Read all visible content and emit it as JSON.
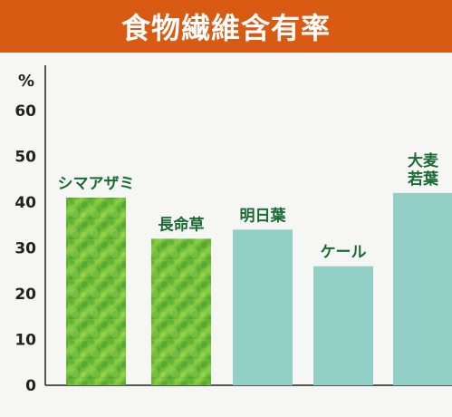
{
  "chart_data": {
    "type": "bar",
    "title": "食物繊維含有率",
    "ylabel": "%",
    "xlabel": "",
    "ylim": [
      0,
      60
    ],
    "yticks": [
      0,
      10,
      20,
      30,
      40,
      50,
      60
    ],
    "categories": [
      "シマアザミ",
      "長命草",
      "明日葉",
      "ケール",
      "大麦若葉"
    ],
    "label_lines": [
      [
        "シマアザミ"
      ],
      [
        "長命草"
      ],
      [
        "明日葉"
      ],
      [
        "ケール"
      ],
      [
        "大麦",
        "若葉"
      ]
    ],
    "values": [
      41,
      32,
      34,
      26,
      42
    ],
    "bar_fill": [
      "green-texture",
      "green-texture",
      "teal",
      "teal",
      "teal"
    ],
    "colors": {
      "banner": "#d85a13",
      "teal": "#92cfc7",
      "green_light": "#8ed045",
      "green_dark": "#3b9a2a",
      "label": "#1a6b32",
      "axis": "#222222"
    },
    "grid": false,
    "legend": "none"
  }
}
